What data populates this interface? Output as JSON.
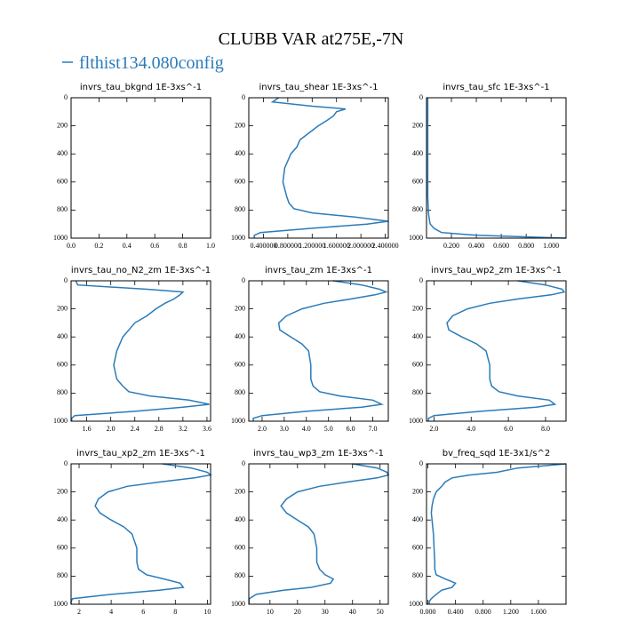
{
  "title": "CLUBB VAR at275E,-7N",
  "legend": {
    "label": "flthist134.080config",
    "color": "#2b7bb9"
  },
  "chart_data": [
    {
      "type": "line",
      "title": "invrs_tau_bkgnd   1E-3xs^-1",
      "levels": [],
      "series": [],
      "xlim": [
        0,
        1
      ],
      "xticks": [
        {
          "value": 0,
          "label": "0.0"
        },
        0.2,
        0.4,
        0.6,
        0.8,
        {
          "value": 1,
          "label": "1.0"
        }
      ],
      "ylim": [
        1000,
        0
      ],
      "yticks": [
        0,
        200,
        400,
        600,
        800,
        1000
      ]
    },
    {
      "type": "line",
      "title": "invrs_tau_shear   1E-3xs^-1",
      "levels": [
        0,
        30,
        60,
        80,
        100,
        130,
        160,
        200,
        250,
        300,
        350,
        400,
        450,
        500,
        600,
        700,
        750,
        790,
        820,
        850,
        880,
        900,
        930,
        960,
        980,
        1000
      ],
      "series": [
        {
          "color": "#2b7bb9",
          "values": [
            0.65,
            0.55,
            1.2,
            1.75,
            1.6,
            1.55,
            1.45,
            1.3,
            1.15,
            1.0,
            0.95,
            0.85,
            0.8,
            0.75,
            0.72,
            0.78,
            0.82,
            0.9,
            1.2,
            1.9,
            2.45,
            2.1,
            1.2,
            0.35,
            0.25,
            0.25
          ]
        }
      ],
      "xlim": [
        0.16,
        2.45
      ],
      "xticks": [
        {
          "value": 0.4,
          "label": "0.400000"
        },
        {
          "value": 0.8,
          "label": "0.800000"
        },
        {
          "value": 1.2,
          "label": "1.200000"
        },
        {
          "value": 1.6,
          "label": "1.600000"
        },
        {
          "value": 2.0,
          "label": "2.000000"
        },
        {
          "value": 2.4,
          "label": "2.400000"
        }
      ],
      "ylim": [
        1000,
        0
      ],
      "yticks": [
        0,
        200,
        400,
        600,
        800,
        1000
      ]
    },
    {
      "type": "line",
      "title": "invrs_tau_sfc   1E-3xs^-1",
      "levels": [
        0,
        30,
        60,
        80,
        100,
        130,
        160,
        200,
        250,
        300,
        350,
        400,
        450,
        500,
        600,
        700,
        750,
        790,
        820,
        850,
        880,
        900,
        930,
        960,
        980,
        1000
      ],
      "series": [
        {
          "color": "#2b7bb9",
          "values": [
            0.01,
            0.01,
            0.01,
            0.01,
            0.01,
            0.01,
            0.01,
            0.01,
            0.01,
            0.01,
            0.01,
            0.01,
            0.01,
            0.01,
            0.01,
            0.01,
            0.012,
            0.014,
            0.016,
            0.02,
            0.025,
            0.03,
            0.06,
            0.12,
            0.4,
            1.12
          ]
        }
      ],
      "xlim": [
        0,
        1.12
      ],
      "xticks": [
        {
          "value": 0.2,
          "label": "0.200"
        },
        {
          "value": 0.4,
          "label": "0.400"
        },
        {
          "value": 0.6,
          "label": "0.600"
        },
        {
          "value": 0.8,
          "label": "0.800"
        },
        {
          "value": 1.0,
          "label": "1.000"
        }
      ],
      "ylim": [
        1000,
        0
      ],
      "yticks": [
        0,
        200,
        400,
        600,
        800,
        1000
      ]
    },
    {
      "type": "line",
      "title": "invrs_tau_no_N2_zm   1E-3xs^-1",
      "levels": [
        0,
        30,
        60,
        80,
        100,
        130,
        160,
        200,
        250,
        300,
        350,
        400,
        450,
        500,
        600,
        700,
        750,
        790,
        820,
        850,
        880,
        900,
        930,
        960,
        980,
        1000
      ],
      "series": [
        {
          "color": "#2b7bb9",
          "values": [
            1.42,
            1.45,
            2.6,
            3.2,
            3.15,
            3.05,
            2.9,
            2.75,
            2.6,
            2.4,
            2.3,
            2.2,
            2.15,
            2.1,
            2.05,
            2.1,
            2.2,
            2.3,
            2.65,
            3.3,
            3.64,
            3.2,
            2.4,
            1.4,
            1.35,
            1.35
          ]
        }
      ],
      "xlim": [
        1.34,
        3.66
      ],
      "xticks": [
        1.6,
        {
          "value": 2.0,
          "label": "2.0"
        },
        2.4,
        2.8,
        3.2,
        3.6
      ],
      "ylim": [
        1000,
        0
      ],
      "yticks": [
        0,
        200,
        400,
        600,
        800,
        1000
      ]
    },
    {
      "type": "line",
      "title": "invrs_tau_zm   1E-3xs^-1",
      "levels": [
        0,
        30,
        60,
        80,
        100,
        130,
        160,
        200,
        250,
        300,
        350,
        400,
        450,
        500,
        600,
        700,
        750,
        790,
        820,
        850,
        880,
        900,
        930,
        960,
        980,
        1000
      ],
      "series": [
        {
          "color": "#2b7bb9",
          "values": [
            5.2,
            6.5,
            7.3,
            7.6,
            7.1,
            6.0,
            4.8,
            3.8,
            3.1,
            2.75,
            2.8,
            3.3,
            3.8,
            4.1,
            4.2,
            4.2,
            4.3,
            4.6,
            5.5,
            7.0,
            7.4,
            6.5,
            4.0,
            2.0,
            1.6,
            1.6
          ]
        }
      ],
      "xlim": [
        1.4,
        7.7
      ],
      "xticks": [
        {
          "value": 2,
          "label": "2.0"
        },
        {
          "value": 3,
          "label": "3.0"
        },
        {
          "value": 4,
          "label": "4.0"
        },
        {
          "value": 5,
          "label": "5.0"
        },
        {
          "value": 6,
          "label": "6.0"
        },
        {
          "value": 7,
          "label": "7.0"
        }
      ],
      "ylim": [
        1000,
        0
      ],
      "yticks": [
        0,
        200,
        400,
        600,
        800,
        1000
      ]
    },
    {
      "type": "line",
      "title": "invrs_tau_wp2_zm   1E-3xs^-1",
      "levels": [
        0,
        30,
        60,
        80,
        100,
        130,
        160,
        200,
        250,
        300,
        350,
        400,
        450,
        500,
        600,
        700,
        750,
        790,
        820,
        850,
        880,
        900,
        930,
        960,
        980,
        1000
      ],
      "series": [
        {
          "color": "#2b7bb9",
          "values": [
            6.5,
            8.0,
            8.9,
            9.0,
            8.3,
            6.5,
            5.0,
            3.8,
            3.0,
            2.7,
            2.8,
            3.5,
            4.3,
            4.8,
            5.0,
            5.0,
            5.1,
            5.5,
            6.5,
            8.2,
            8.5,
            7.5,
            4.5,
            2.0,
            1.7,
            1.7
          ]
        }
      ],
      "xlim": [
        1.6,
        9.1
      ],
      "xticks": [
        {
          "value": 2,
          "label": "2.0"
        },
        {
          "value": 4,
          "label": "4.0"
        },
        {
          "value": 6,
          "label": "6.0"
        },
        {
          "value": 8,
          "label": "8.0"
        }
      ],
      "ylim": [
        1000,
        0
      ],
      "yticks": [
        0,
        200,
        400,
        600,
        800,
        1000
      ]
    },
    {
      "type": "line",
      "title": "invrs_tau_xp2_zm   1E-3xs^-1",
      "levels": [
        0,
        30,
        60,
        80,
        100,
        130,
        160,
        200,
        250,
        300,
        350,
        400,
        450,
        500,
        600,
        700,
        750,
        790,
        820,
        850,
        880,
        900,
        930,
        960,
        980,
        1000
      ],
      "series": [
        {
          "color": "#2b7bb9",
          "values": [
            7.2,
            9.0,
            10.0,
            10.2,
            9.2,
            7.0,
            5.0,
            3.8,
            3.2,
            3.0,
            3.3,
            4.0,
            4.8,
            5.3,
            5.6,
            5.6,
            5.7,
            6.2,
            7.3,
            8.3,
            8.5,
            7.0,
            4.0,
            1.6,
            1.5,
            1.5
          ]
        }
      ],
      "xlim": [
        1.5,
        10.2
      ],
      "xticks": [
        2,
        4,
        6,
        8,
        10
      ],
      "ylim": [
        1000,
        0
      ],
      "yticks": [
        0,
        200,
        400,
        600,
        800,
        1000
      ]
    },
    {
      "type": "line",
      "title": "invrs_tau_wp3_zm   1E-3xs^-1",
      "levels": [
        0,
        30,
        60,
        80,
        100,
        130,
        160,
        200,
        250,
        300,
        350,
        400,
        450,
        500,
        600,
        700,
        750,
        790,
        820,
        850,
        880,
        900,
        930,
        960,
        980,
        1000
      ],
      "series": [
        {
          "color": "#2b7bb9",
          "values": [
            40,
            49,
            52.5,
            53,
            49,
            38,
            28,
            20,
            16,
            14,
            16,
            20,
            24,
            26,
            27,
            27,
            28,
            30,
            33,
            32,
            25,
            15,
            5,
            2.5,
            2.4,
            2.4
          ]
        }
      ],
      "xlim": [
        2.3,
        53
      ],
      "xticks": [
        10,
        20,
        30,
        40,
        50
      ],
      "ylim": [
        1000,
        0
      ],
      "yticks": [
        0,
        200,
        400,
        600,
        800,
        1000
      ]
    },
    {
      "type": "line",
      "title": "bv_freq_sqd   1E-3x1/s^2",
      "levels": [
        0,
        30,
        60,
        80,
        100,
        130,
        160,
        200,
        250,
        300,
        350,
        400,
        450,
        500,
        600,
        700,
        750,
        790,
        820,
        850,
        880,
        900,
        930,
        960,
        980,
        1000
      ],
      "series": [
        {
          "color": "#2b7bb9",
          "values": [
            2.0,
            1.3,
            1.0,
            0.6,
            0.35,
            0.25,
            0.2,
            0.12,
            0.08,
            0.06,
            0.05,
            0.06,
            0.07,
            0.08,
            0.09,
            0.1,
            0.1,
            0.12,
            0.25,
            0.4,
            0.35,
            0.2,
            0.12,
            0.05,
            0.02,
            0.02
          ]
        }
      ],
      "xlim": [
        -0.02,
        2.0
      ],
      "xticks": [
        {
          "value": 0,
          "label": "0.000"
        },
        {
          "value": 0.4,
          "label": "0.400"
        },
        {
          "value": 0.8,
          "label": "0.800"
        },
        {
          "value": 1.2,
          "label": "1.200"
        },
        {
          "value": 1.6,
          "label": "1.600"
        }
      ],
      "ylim": [
        1000,
        0
      ],
      "yticks": [
        0,
        200,
        400,
        600,
        800,
        1000
      ]
    }
  ]
}
